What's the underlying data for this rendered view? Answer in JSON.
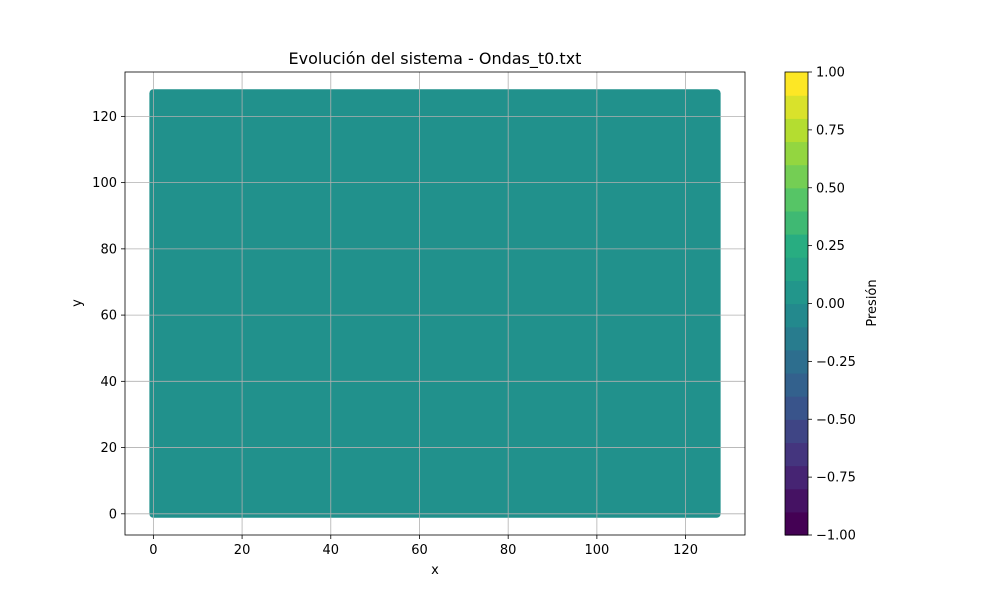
{
  "chart_data": {
    "type": "heatmap",
    "title": "Evolución del sistema - Ondas_t0.txt",
    "xlabel": "x",
    "ylabel": "y",
    "xlim": [
      -6.4,
      133.4
    ],
    "ylim": [
      -6.4,
      133.4
    ],
    "xticks": [
      0,
      20,
      40,
      60,
      80,
      100,
      120
    ],
    "yticks": [
      0,
      20,
      40,
      60,
      80,
      100,
      120
    ],
    "x_tick_labels": [
      "0",
      "20",
      "40",
      "60",
      "80",
      "100",
      "120"
    ],
    "y_tick_labels": [
      "0",
      "20",
      "40",
      "60",
      "80",
      "100",
      "120"
    ],
    "grid": true,
    "data_extent": {
      "x": [
        0,
        127
      ],
      "y": [
        0,
        127
      ]
    },
    "uniform_value": 0.0,
    "fill_color": "#21918c",
    "colorbar": {
      "label": "Presión",
      "colormap": "viridis",
      "vmin": -1.0,
      "vmax": 1.0,
      "levels": 20,
      "ticks": [
        -1.0,
        -0.75,
        -0.5,
        -0.25,
        0.0,
        0.25,
        0.5,
        0.75,
        1.0
      ],
      "tick_labels": [
        "−1.00",
        "−0.75",
        "−0.50",
        "−0.25",
        "0.00",
        "0.25",
        "0.50",
        "0.75",
        "1.00"
      ]
    }
  }
}
